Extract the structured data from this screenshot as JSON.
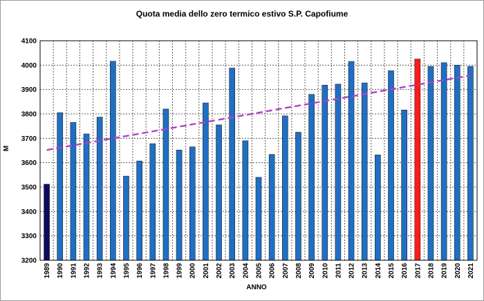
{
  "chart_data": {
    "type": "bar",
    "title": "Quota media dello zero termico estivo S.P. Capofiume",
    "xlabel": "ANNO",
    "ylabel": "M",
    "ylim": [
      3200,
      4100
    ],
    "yticks": [
      3200,
      3300,
      3400,
      3500,
      3600,
      3700,
      3800,
      3900,
      4000,
      4100
    ],
    "grid": true,
    "legend": "none",
    "categories": [
      "1989",
      "1990",
      "1991",
      "1992",
      "1993",
      "1994",
      "1995",
      "1996",
      "1997",
      "1998",
      "1999",
      "2000",
      "2001",
      "2002",
      "2003",
      "2004",
      "2005",
      "2006",
      "2007",
      "2008",
      "2009",
      "2010",
      "2011",
      "2012",
      "2013",
      "2014",
      "2015",
      "2016",
      "2017",
      "2018",
      "2019",
      "2020",
      "2021"
    ],
    "values": [
      3512,
      3805,
      3765,
      3718,
      3787,
      4016,
      3545,
      3607,
      3678,
      3820,
      3652,
      3665,
      3845,
      3755,
      3988,
      3690,
      3540,
      3634,
      3792,
      3725,
      3880,
      3918,
      3922,
      4015,
      3927,
      3632,
      3977,
      3816,
      4025,
      3995,
      4010,
      4000,
      3995
    ],
    "bar_colors": {
      "1989": "#0a0a5e",
      "2017": "#ff1a1a",
      "default": "#1f6fc4"
    },
    "trendline": {
      "style": "dashed",
      "color": "#b040c8",
      "start": {
        "x": "1989",
        "y": 3652
      },
      "end": {
        "x": "2021",
        "y": 3958
      }
    }
  }
}
